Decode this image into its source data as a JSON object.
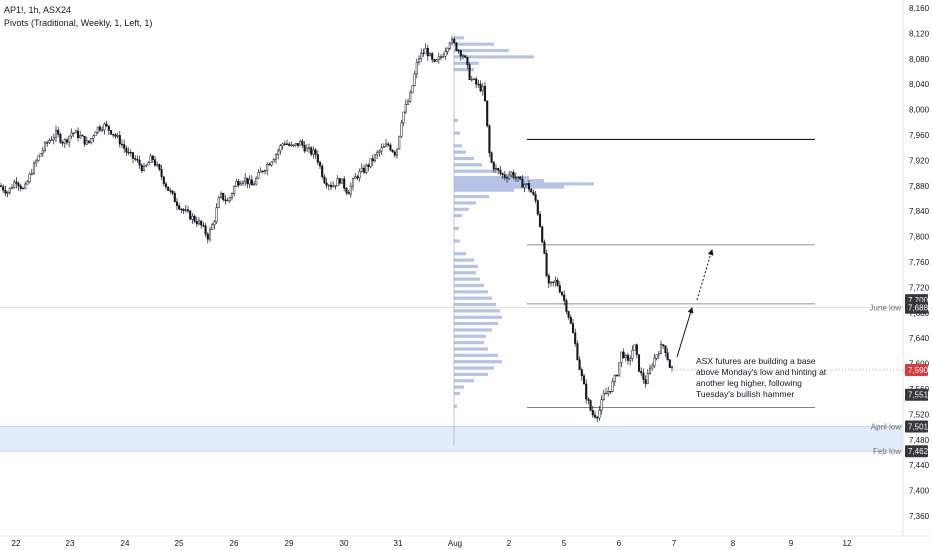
{
  "header": {
    "symbol_line": "AP1!, 1h, ASX24",
    "indicator_line": "Pivots (Traditional, Weekly, 1, Left, 1)"
  },
  "annotation": {
    "text": "ASX futures are building a base above Monday's low and hinting at another leg higher, following Tuesday's bullish hammer"
  },
  "colors": {
    "candle": "#131722",
    "volume_profile": "#8fa3d9",
    "shaded_zone": "#e3ecfa",
    "price_tag_bg": "#37373c",
    "current_price_bg": "#e03a3e"
  },
  "chart_data": {
    "type": "candlestick",
    "instrument": "AP1!",
    "timeframe": "1h",
    "exchange": "ASX24",
    "y_axis": {
      "ticks": [
        "8,160",
        "8,120",
        "8,080",
        "8,040",
        "8,000",
        "7,960",
        "7,920",
        "7,880",
        "7,840",
        "7,800",
        "7,760",
        "7,720",
        "7,680",
        "7,640",
        "7,600",
        "7,560",
        "7,520",
        "7,480",
        "7,440",
        "7,400",
        "7,360"
      ],
      "range": [
        7325,
        8165
      ]
    },
    "x_axis": {
      "ticks": [
        "22",
        "23",
        "24",
        "25",
        "26",
        "29",
        "30",
        "31",
        "Aug",
        "2",
        "5",
        "6",
        "7",
        "8",
        "9",
        "12"
      ]
    },
    "price_path": [
      [
        0,
        7880
      ],
      [
        8,
        7870
      ],
      [
        16,
        7890
      ],
      [
        24,
        7872
      ],
      [
        32,
        7905
      ],
      [
        40,
        7930
      ],
      [
        48,
        7950
      ],
      [
        56,
        7962
      ],
      [
        64,
        7948
      ],
      [
        72,
        7965
      ],
      [
        80,
        7958
      ],
      [
        88,
        7945
      ],
      [
        96,
        7970
      ],
      [
        104,
        7975
      ],
      [
        112,
        7965
      ],
      [
        120,
        7950
      ],
      [
        128,
        7930
      ],
      [
        136,
        7920
      ],
      [
        144,
        7905
      ],
      [
        152,
        7925
      ],
      [
        160,
        7900
      ],
      [
        168,
        7875
      ],
      [
        176,
        7855
      ],
      [
        184,
        7840
      ],
      [
        192,
        7830
      ],
      [
        200,
        7820
      ],
      [
        208,
        7800
      ],
      [
        214,
        7825
      ],
      [
        220,
        7865
      ],
      [
        228,
        7855
      ],
      [
        236,
        7885
      ],
      [
        244,
        7892
      ],
      [
        252,
        7880
      ],
      [
        260,
        7900
      ],
      [
        268,
        7915
      ],
      [
        276,
        7930
      ],
      [
        284,
        7950
      ],
      [
        292,
        7940
      ],
      [
        300,
        7948
      ],
      [
        308,
        7935
      ],
      [
        316,
        7930
      ],
      [
        324,
        7890
      ],
      [
        332,
        7880
      ],
      [
        340,
        7890
      ],
      [
        348,
        7870
      ],
      [
        356,
        7895
      ],
      [
        364,
        7905
      ],
      [
        372,
        7920
      ],
      [
        380,
        7935
      ],
      [
        388,
        7945
      ],
      [
        396,
        7930
      ],
      [
        402,
        7990
      ],
      [
        410,
        8020
      ],
      [
        418,
        8080
      ],
      [
        426,
        8095
      ],
      [
        434,
        8070
      ],
      [
        442,
        8085
      ],
      [
        450,
        8110
      ],
      [
        458,
        8095
      ],
      [
        464,
        8085
      ],
      [
        470,
        8050
      ],
      [
        476,
        8040
      ],
      [
        484,
        8030
      ],
      [
        490,
        7920
      ],
      [
        496,
        7905
      ],
      [
        504,
        7895
      ],
      [
        512,
        7900
      ],
      [
        520,
        7885
      ],
      [
        528,
        7880
      ],
      [
        536,
        7855
      ],
      [
        542,
        7800
      ],
      [
        548,
        7720
      ],
      [
        556,
        7730
      ],
      [
        562,
        7710
      ],
      [
        568,
        7680
      ],
      [
        574,
        7640
      ],
      [
        580,
        7590
      ],
      [
        586,
        7550
      ],
      [
        592,
        7520
      ],
      [
        598,
        7520
      ],
      [
        604,
        7550
      ],
      [
        610,
        7560
      ],
      [
        616,
        7580
      ],
      [
        622,
        7620
      ],
      [
        628,
        7600
      ],
      [
        634,
        7630
      ],
      [
        640,
        7585
      ],
      [
        646,
        7570
      ],
      [
        652,
        7600
      ],
      [
        658,
        7620
      ],
      [
        664,
        7630
      ],
      [
        670,
        7595
      ],
      [
        674,
        7590
      ]
    ],
    "current_price": 7590,
    "price_labels": [
      {
        "value": 7700,
        "label": "7,700"
      },
      {
        "value": 7688,
        "label": "7,688",
        "annotation": "June low"
      },
      {
        "value": 7551,
        "label": "7,551"
      },
      {
        "value": 7501,
        "label": "7,501",
        "annotation": "April low"
      },
      {
        "value": 7462,
        "label": "7,462",
        "annotation": "Feb low"
      }
    ],
    "current_price_label": "7,590",
    "pivot_levels": [
      {
        "value": 7953,
        "weight": "bold"
      },
      {
        "value": 7787,
        "weight": "thin"
      },
      {
        "value": 7694,
        "weight": "thin"
      },
      {
        "value": 7531,
        "weight": "thin"
      }
    ],
    "shaded_zone": [
      7462,
      7501
    ],
    "volume_profile": [
      [
        8113,
        10
      ],
      [
        8103,
        40
      ],
      [
        8093,
        55
      ],
      [
        8083,
        80
      ],
      [
        8073,
        25
      ],
      [
        8063,
        20
      ],
      [
        7983,
        4
      ],
      [
        7963,
        6
      ],
      [
        7943,
        8
      ],
      [
        7933,
        12
      ],
      [
        7923,
        20
      ],
      [
        7913,
        28
      ],
      [
        7903,
        42
      ],
      [
        7893,
        75
      ],
      [
        7888,
        90
      ],
      [
        7883,
        140
      ],
      [
        7878,
        110
      ],
      [
        7873,
        60
      ],
      [
        7863,
        35
      ],
      [
        7853,
        22
      ],
      [
        7843,
        15
      ],
      [
        7833,
        8
      ],
      [
        7813,
        5
      ],
      [
        7793,
        6
      ],
      [
        7773,
        12
      ],
      [
        7763,
        20
      ],
      [
        7753,
        24
      ],
      [
        7743,
        22
      ],
      [
        7733,
        26
      ],
      [
        7723,
        30
      ],
      [
        7713,
        34
      ],
      [
        7703,
        38
      ],
      [
        7693,
        42
      ],
      [
        7683,
        46
      ],
      [
        7673,
        48
      ],
      [
        7663,
        44
      ],
      [
        7653,
        38
      ],
      [
        7643,
        32
      ],
      [
        7633,
        30
      ],
      [
        7623,
        34
      ],
      [
        7613,
        44
      ],
      [
        7603,
        48
      ],
      [
        7593,
        40
      ],
      [
        7583,
        34
      ],
      [
        7573,
        20
      ],
      [
        7563,
        10
      ],
      [
        7553,
        6
      ],
      [
        7533,
        3
      ]
    ],
    "projection": {
      "from_price": 7680,
      "to_price": 7790
    }
  }
}
